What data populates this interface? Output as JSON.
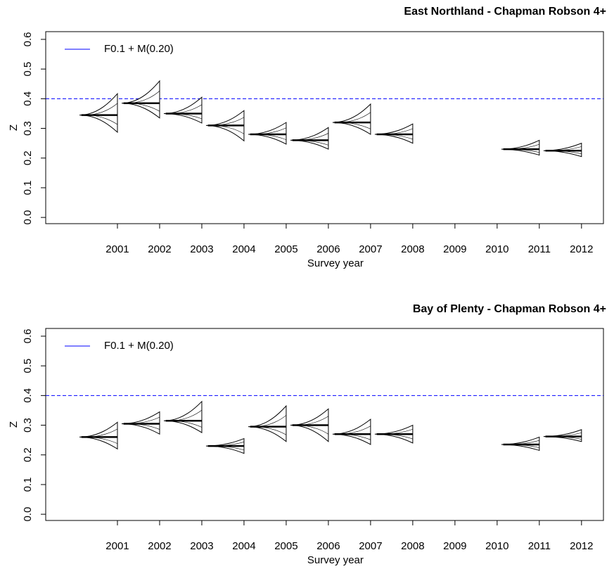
{
  "chart_data": [
    {
      "type": "distribution",
      "title": "East Northland - Chapman Robson 4+",
      "x_label": "Survey year",
      "y_label": "Z",
      "x": [
        2001,
        2002,
        2003,
        2004,
        2005,
        2006,
        2007,
        2008,
        2009,
        2010,
        2011,
        2012
      ],
      "series": [
        {
          "name": "median",
          "values": [
            0.345,
            0.385,
            0.35,
            0.31,
            0.28,
            0.26,
            0.32,
            0.28,
            null,
            null,
            0.23,
            0.225
          ]
        },
        {
          "name": "upper",
          "values": [
            0.417,
            0.46,
            0.405,
            0.36,
            0.32,
            0.303,
            0.382,
            0.315,
            null,
            null,
            0.26,
            0.25
          ]
        },
        {
          "name": "lower",
          "values": [
            0.287,
            0.335,
            0.318,
            0.258,
            0.247,
            0.23,
            0.28,
            0.25,
            null,
            null,
            0.21,
            0.205
          ]
        }
      ],
      "reference_line": {
        "name": "F0.1 + M(0.20)",
        "value": 0.4,
        "color": "#0000ff"
      },
      "xlim": [
        1999.3,
        2012.52
      ],
      "xticks": [
        2001,
        2002,
        2003,
        2004,
        2005,
        2006,
        2007,
        2008,
        2009,
        2010,
        2011,
        2012
      ],
      "ylim": [
        -0.021,
        0.626
      ],
      "yticks": [
        {
          "value": 0,
          "label": "0.0"
        },
        0.1,
        0.2,
        0.3,
        0.4,
        0.5,
        0.6
      ],
      "legend": "top-left"
    },
    {
      "type": "distribution",
      "title": "Bay of Plenty - Chapman Robson 4+",
      "x_label": "Survey year",
      "y_label": "Z",
      "x": [
        2001,
        2002,
        2003,
        2004,
        2005,
        2006,
        2007,
        2008,
        2009,
        2010,
        2011,
        2012
      ],
      "series": [
        {
          "name": "median",
          "values": [
            0.26,
            0.305,
            0.315,
            0.23,
            0.295,
            0.3,
            0.27,
            0.27,
            null,
            null,
            0.235,
            0.262
          ]
        },
        {
          "name": "upper",
          "values": [
            0.31,
            0.345,
            0.38,
            0.255,
            0.365,
            0.355,
            0.32,
            0.3,
            null,
            null,
            0.26,
            0.285
          ]
        },
        {
          "name": "lower",
          "values": [
            0.22,
            0.27,
            0.275,
            0.205,
            0.245,
            0.245,
            0.235,
            0.24,
            null,
            null,
            0.215,
            0.245
          ]
        }
      ],
      "reference_line": {
        "name": "F0.1 + M(0.20)",
        "value": 0.4,
        "color": "#0000ff"
      },
      "xlim": [
        1999.3,
        2012.52
      ],
      "xticks": [
        2001,
        2002,
        2003,
        2004,
        2005,
        2006,
        2007,
        2008,
        2009,
        2010,
        2011,
        2012
      ],
      "ylim": [
        -0.021,
        0.626
      ],
      "yticks": [
        {
          "value": 0,
          "label": "0.0"
        },
        0.1,
        0.2,
        0.3,
        0.4,
        0.5,
        0.6
      ],
      "legend": "top-left"
    }
  ]
}
